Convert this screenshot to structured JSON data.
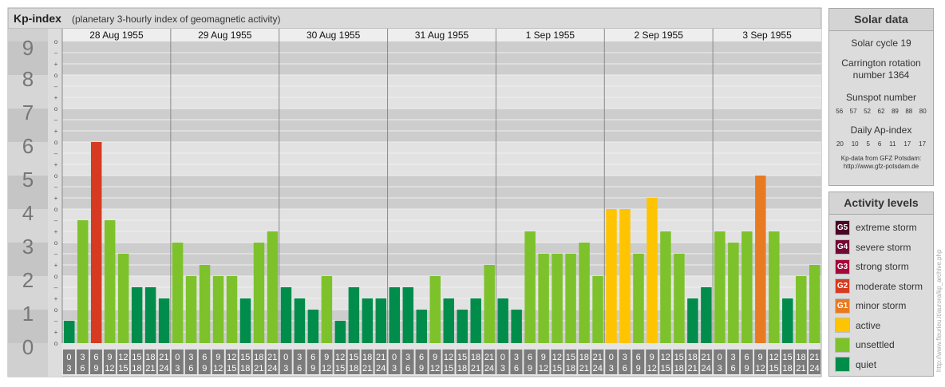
{
  "header": {
    "title": "Kp-index",
    "subtitle": "(planetary 3-hourly index of geomagnetic activity)"
  },
  "chart_data": {
    "type": "bar",
    "title": "Kp-index",
    "subtitle": "(planetary 3-hourly index of geomagnetic activity)",
    "ylim": [
      0,
      9
    ],
    "y_ticks": [
      "0",
      "1",
      "2",
      "3",
      "4",
      "5",
      "6",
      "7",
      "8",
      "9"
    ],
    "thirds_labels": [
      "–",
      "o",
      "+"
    ],
    "days": [
      "28 Aug 1955",
      "29 Aug 1955",
      "30 Aug 1955",
      "31 Aug 1955",
      "1 Sep 1955",
      "2 Sep 1955",
      "3 Sep 1955"
    ],
    "intervals": [
      [
        "0",
        "3"
      ],
      [
        "3",
        "6"
      ],
      [
        "6",
        "9"
      ],
      [
        "9",
        "12"
      ],
      [
        "12",
        "15"
      ],
      [
        "15",
        "18"
      ],
      [
        "18",
        "21"
      ],
      [
        "21",
        "24"
      ]
    ],
    "values": [
      0.667,
      3.667,
      6.0,
      3.667,
      2.667,
      1.667,
      1.667,
      1.333,
      3.0,
      2.0,
      2.333,
      2.0,
      2.0,
      1.333,
      3.0,
      3.333,
      1.667,
      1.333,
      1.0,
      2.0,
      0.667,
      1.667,
      1.333,
      1.333,
      1.667,
      1.667,
      1.0,
      2.0,
      1.333,
      1.0,
      1.333,
      2.333,
      1.333,
      1.0,
      3.333,
      2.667,
      2.667,
      2.667,
      3.0,
      2.0,
      4.0,
      4.0,
      2.667,
      4.333,
      3.333,
      2.667,
      1.333,
      1.667,
      3.333,
      3.0,
      3.333,
      5.0,
      3.333,
      1.333,
      2.0,
      2.333
    ],
    "colors": {
      "quiet": "#008c4b",
      "unsettled": "#7dc22b",
      "active": "#ffc400",
      "G1": "#e87b22",
      "G2": "#d63b21",
      "G3": "#a6083a",
      "G4": "#740834",
      "G5": "#4b0526"
    }
  },
  "solar": {
    "title": "Solar data",
    "cycle": "Solar cycle 19",
    "carrington_1": "Carrington rotation",
    "carrington_2": "number 1364",
    "sunspot_label": "Sunspot number",
    "sunspots": [
      "56",
      "57",
      "52",
      "62",
      "89",
      "88",
      "80"
    ],
    "ap_label": "Daily Ap-index",
    "ap": [
      "20",
      "10",
      "5",
      "6",
      "11",
      "17",
      "17"
    ],
    "credit_1": "Kp-data from GFZ Potsdam:",
    "credit_2": "http://www.gfz-potsdam.de"
  },
  "legend": {
    "title": "Activity levels",
    "items": [
      {
        "code": "G5",
        "label": "extreme storm",
        "color": "#4b0526"
      },
      {
        "code": "G4",
        "label": "severe storm",
        "color": "#740834"
      },
      {
        "code": "G3",
        "label": "strong storm",
        "color": "#a6083a"
      },
      {
        "code": "G2",
        "label": "moderate storm",
        "color": "#d63b21"
      },
      {
        "code": "G1",
        "label": "minor storm",
        "color": "#e87b22"
      },
      {
        "code": "",
        "label": "active",
        "color": "#ffc400"
      },
      {
        "code": "",
        "label": "unsettled",
        "color": "#7dc22b"
      },
      {
        "code": "",
        "label": "quiet",
        "color": "#008c4b"
      }
    ]
  },
  "watermark": "http://www.fleurieu.it/aurora/kp_archive.php"
}
